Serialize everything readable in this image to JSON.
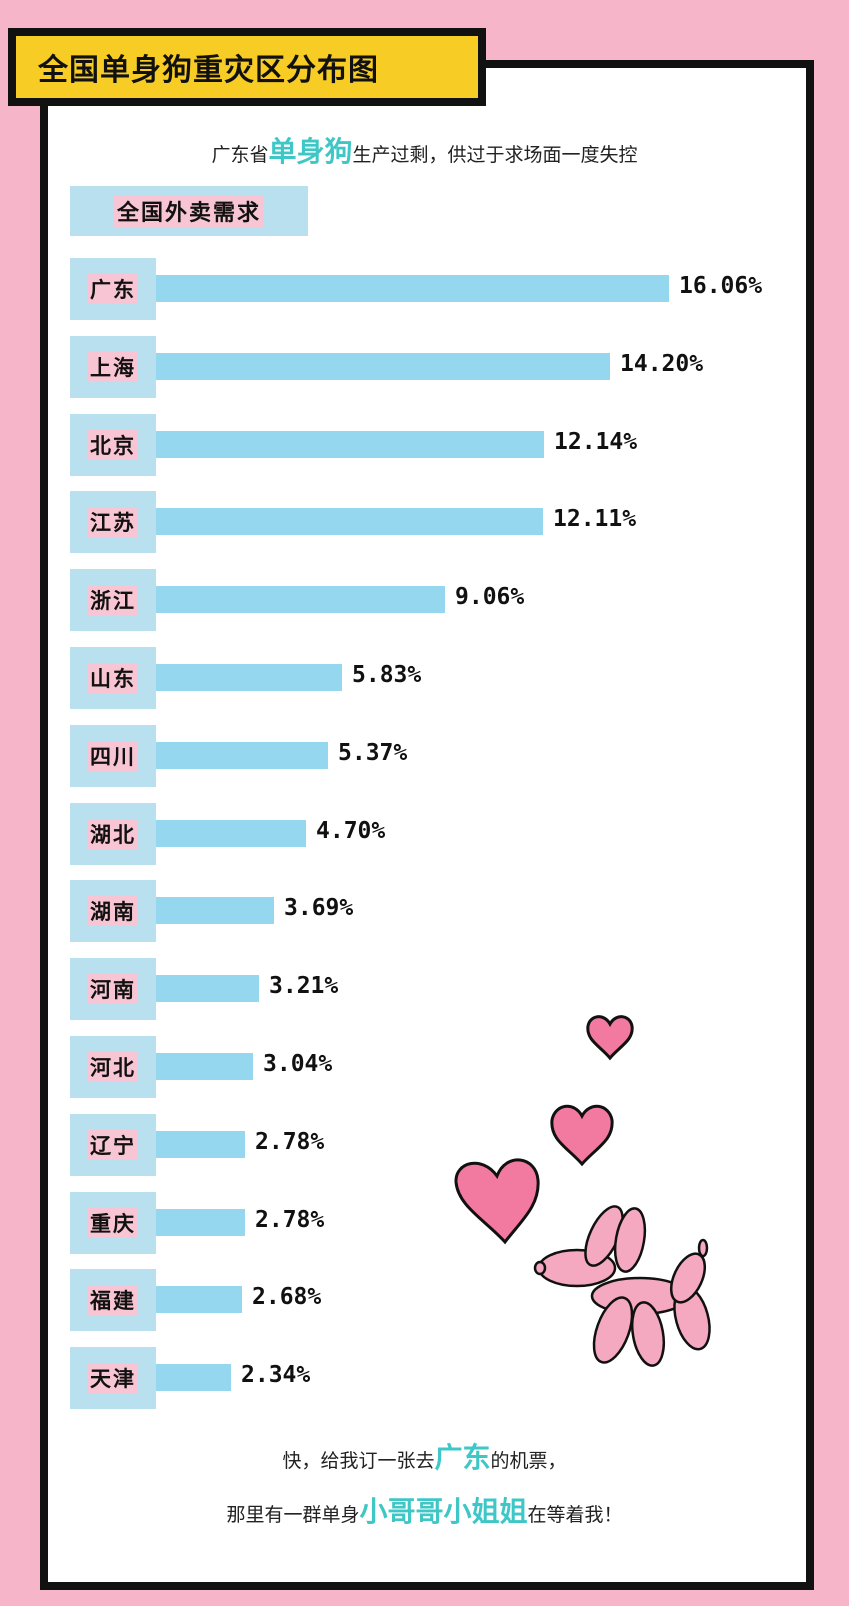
{
  "title": "全国单身狗重灾区分布图",
  "subtitle": {
    "before": "广东省",
    "highlight": "单身狗",
    "after": "生产过剩，供过于求场面一度失控"
  },
  "section_label": "全国外卖需求",
  "chart_data": {
    "type": "bar",
    "orientation": "horizontal",
    "categories": [
      "广东",
      "上海",
      "北京",
      "江苏",
      "浙江",
      "山东",
      "四川",
      "湖北",
      "湖南",
      "河南",
      "河北",
      "辽宁",
      "重庆",
      "福建",
      "天津"
    ],
    "values": [
      16.06,
      14.2,
      12.14,
      12.11,
      9.06,
      5.83,
      5.37,
      4.7,
      3.69,
      3.21,
      3.04,
      2.78,
      2.78,
      2.68,
      2.34
    ],
    "value_labels": [
      "16.06%",
      "14.20%",
      "12.14%",
      "12.11%",
      "9.06%",
      "5.83%",
      "5.37%",
      "4.70%",
      "3.69%",
      "3.21%",
      "3.04%",
      "2.78%",
      "2.78%",
      "2.68%",
      "2.34%"
    ],
    "bar_color": "#95d7ee"
  },
  "footer": {
    "line1": {
      "before": "快，给我订一张去",
      "highlight": "广东",
      "after": "的机票，"
    },
    "line2": {
      "before": "那里有一群单身",
      "highlight": "小哥哥小姐姐",
      "after": "在等着我！"
    }
  },
  "colors": {
    "background": "#f7b5ca",
    "title_bg": "#f6cc25",
    "accent_text": "#3fc7c7",
    "label_bg": "#b9e0ef",
    "label_highlight": "#f8c5d4",
    "heart": "#f27aa0",
    "balloon_dog": "#f4a9c0"
  },
  "decorations": [
    "heart-icon",
    "heart-icon",
    "heart-icon",
    "balloon-dog-icon"
  ]
}
